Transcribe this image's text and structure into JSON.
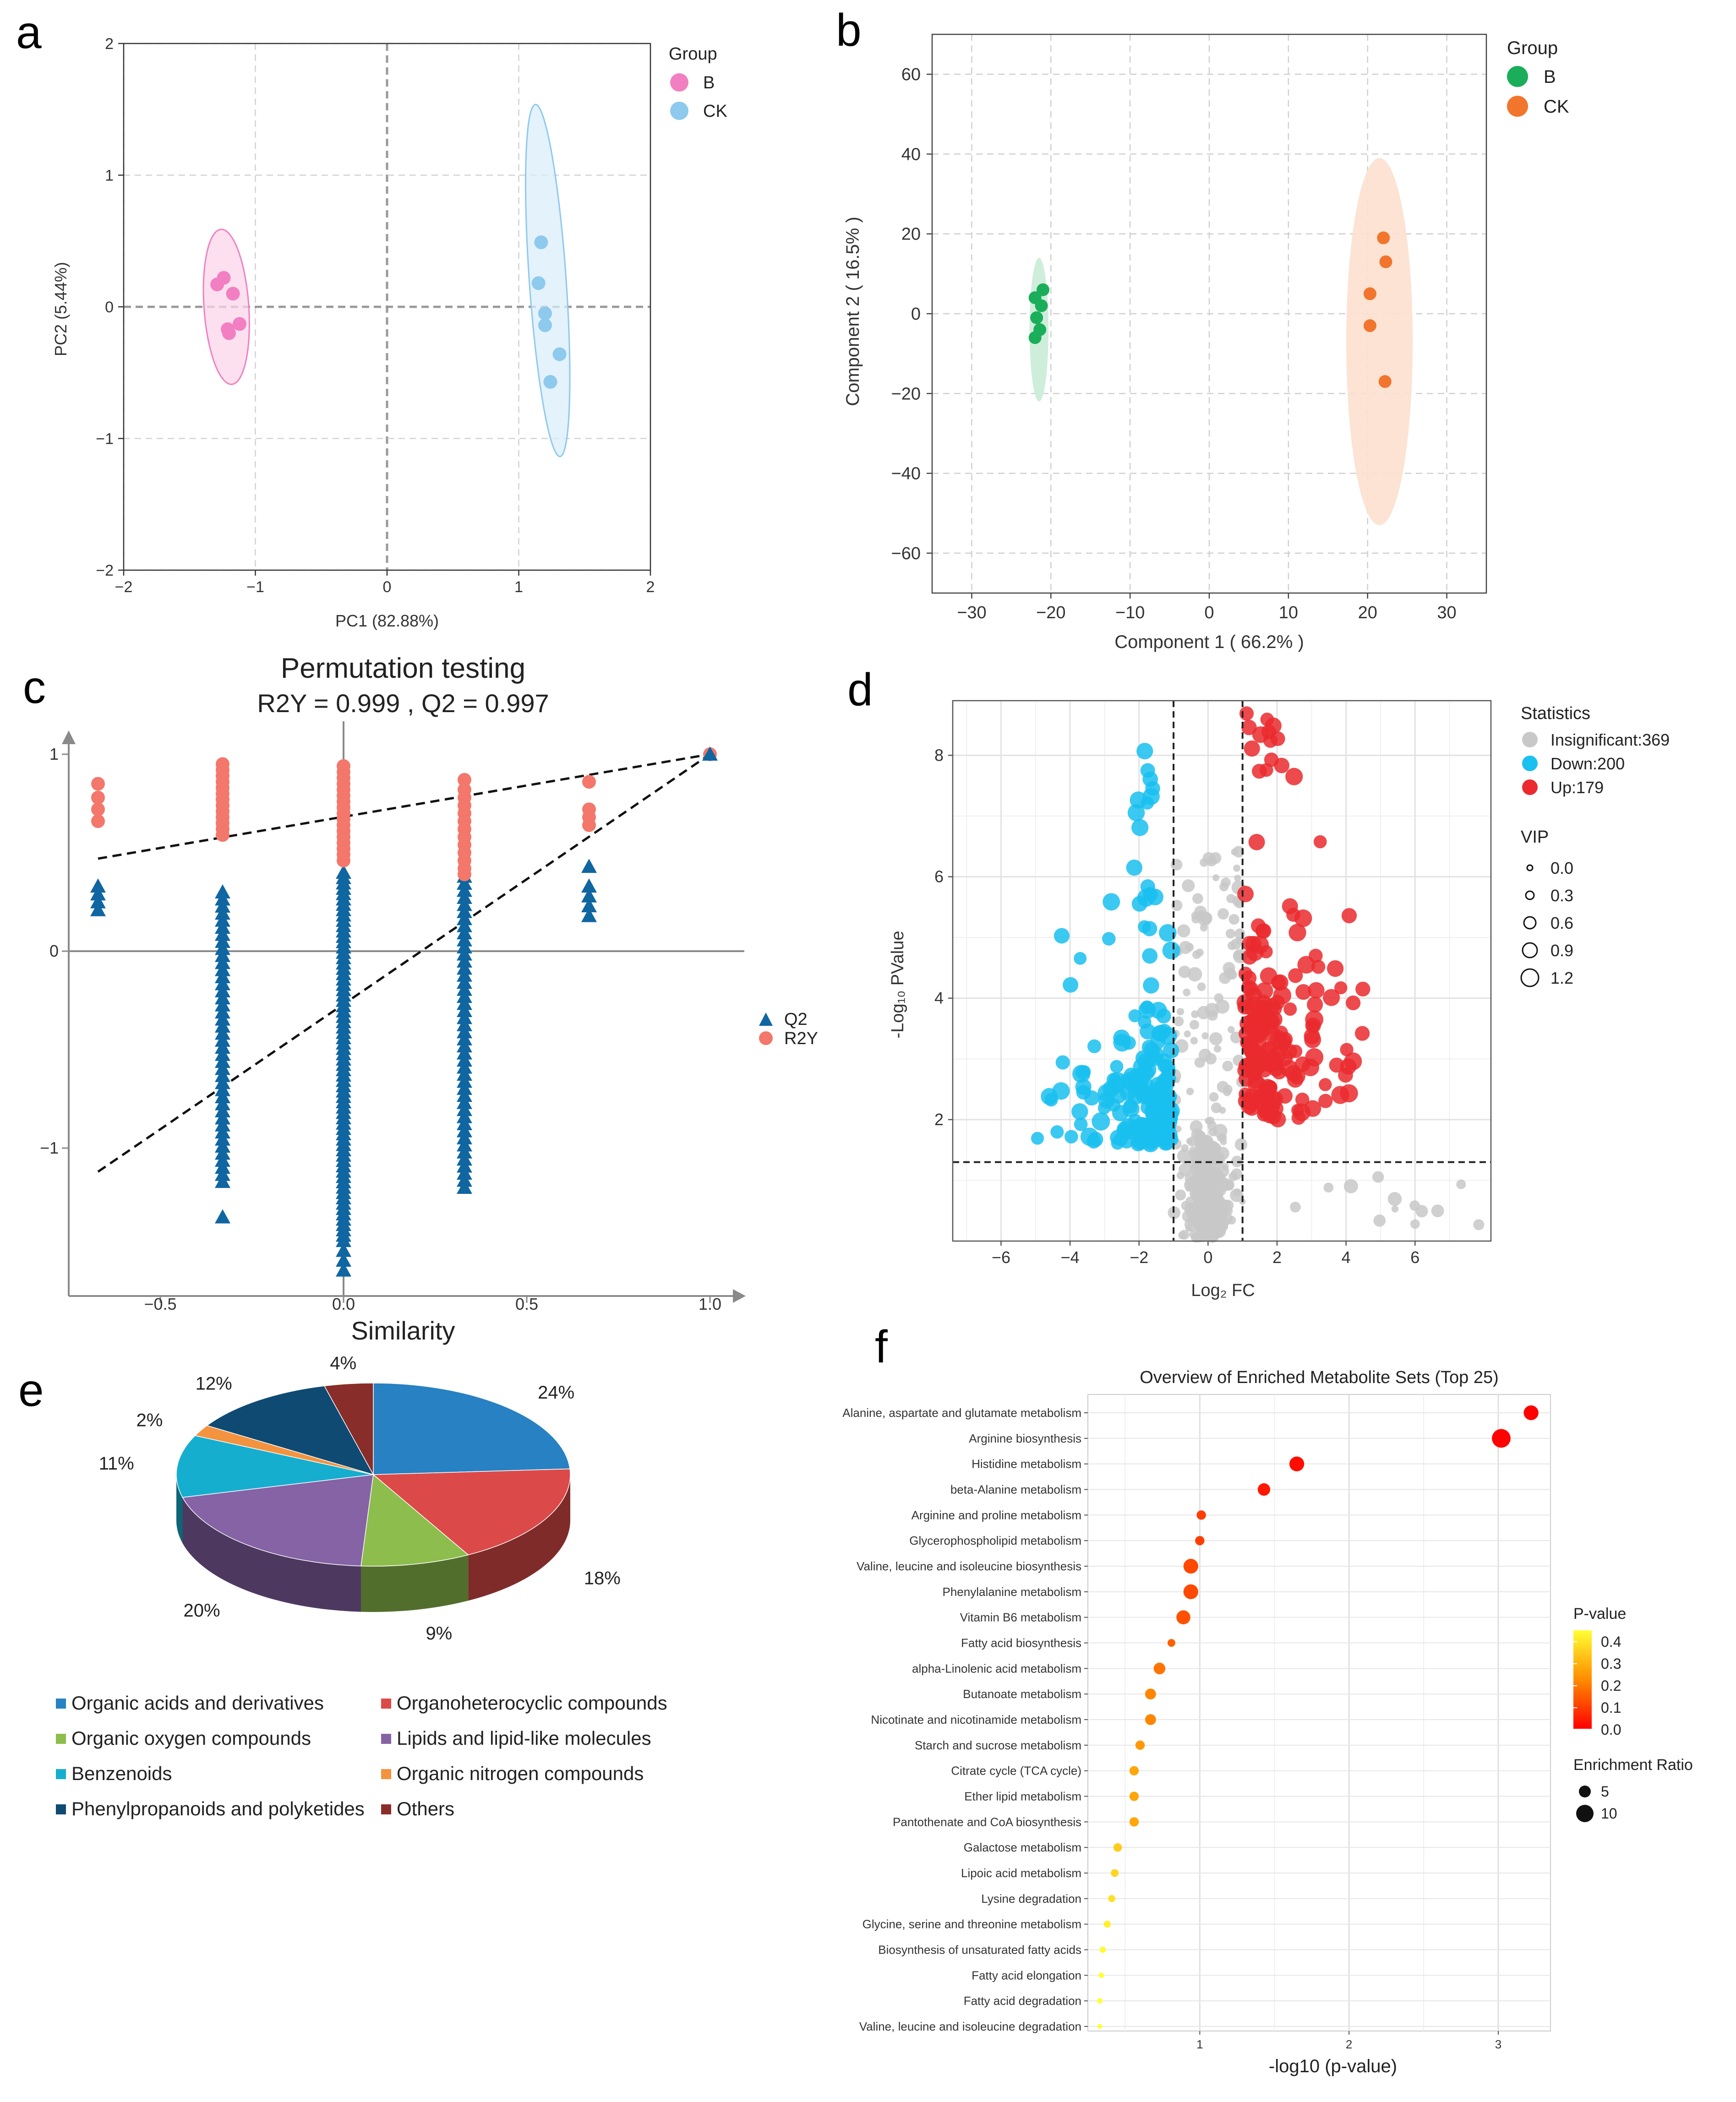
{
  "panels": {
    "a": {
      "letter": "a",
      "xlabel": "PC1 (82.88%)",
      "ylabel": "PC2 (5.44%)",
      "legend_title": "Group",
      "xticks": [
        -2,
        -1,
        0,
        1,
        2
      ],
      "yticks": [
        -2,
        -1,
        0,
        1,
        2
      ],
      "groups": [
        {
          "name": "B",
          "color": "#F27FC1",
          "fill": "#FBD6EA",
          "ellipse": {
            "cx": -1.22,
            "cy": 0.0,
            "rx": 0.17,
            "ry": 0.59,
            "rot": -4
          },
          "points": [
            [
              -1.29,
              0.17
            ],
            [
              -1.24,
              0.22
            ],
            [
              -1.17,
              0.1
            ],
            [
              -1.12,
              -0.13
            ],
            [
              -1.2,
              -0.2
            ],
            [
              -1.21,
              -0.17
            ]
          ]
        },
        {
          "name": "CK",
          "color": "#8EC9EE",
          "fill": "#D9EEFA",
          "ellipse": {
            "cx": 1.22,
            "cy": 0.2,
            "rx": 0.14,
            "ry": 1.34,
            "rot": -4
          },
          "points": [
            [
              1.17,
              0.49
            ],
            [
              1.15,
              0.18
            ],
            [
              1.2,
              -0.14
            ],
            [
              1.31,
              -0.36
            ],
            [
              1.24,
              -0.57
            ],
            [
              1.2,
              -0.05
            ]
          ]
        }
      ]
    },
    "b": {
      "letter": "b",
      "xlabel": "Component 1 ( 66.2% )",
      "ylabel": "Component 2 ( 16.5% )",
      "legend_title": "Group",
      "xticks": [
        -30,
        -20,
        -10,
        0,
        10,
        20,
        30
      ],
      "yticks": [
        -60,
        -40,
        -20,
        0,
        20,
        40,
        60
      ],
      "groups": [
        {
          "name": "B",
          "color": "#1AAE5A",
          "fill": "#C9ECD7",
          "ellipse": {
            "cx": -21.5,
            "cy": -4,
            "rx": 1.2,
            "ry": 18
          },
          "points": [
            [
              -21.0,
              6
            ],
            [
              -22.0,
              4
            ],
            [
              -21.2,
              2
            ],
            [
              -21.8,
              -1
            ],
            [
              -21.4,
              -4
            ],
            [
              -22.0,
              -6
            ]
          ]
        },
        {
          "name": "CK",
          "color": "#F2752D",
          "fill": "#FCE0CF",
          "ellipse": {
            "cx": 21.5,
            "cy": -7,
            "rx": 4.2,
            "ry": 46
          },
          "points": [
            [
              22.0,
              19
            ],
            [
              22.3,
              13
            ],
            [
              20.3,
              5
            ],
            [
              20.3,
              -3
            ],
            [
              22.2,
              -17
            ]
          ]
        }
      ]
    },
    "c": {
      "letter": "c",
      "title": "Permutation testing",
      "subtitle": "R2Y = 0.999 ,  Q2 = 0.997",
      "xlabel": "Similarity",
      "xticks": [
        "−0.5",
        "0.0",
        "0.5",
        "1.0"
      ],
      "yticks": [
        "1",
        "0",
        "−1"
      ],
      "legend": [
        {
          "name": "Q2",
          "color": "#0F66A1"
        },
        {
          "name": "R2Y",
          "color": "#F3776A"
        }
      ],
      "r2y_groups": [
        {
          "x": -0.67,
          "y": [
            0.85,
            0.78,
            0.72,
            0.66
          ]
        },
        {
          "x": -0.33,
          "y": [
            0.95,
            0.92,
            0.89,
            0.86,
            0.83,
            0.8,
            0.77,
            0.74,
            0.71,
            0.68,
            0.65,
            0.62,
            0.59
          ]
        },
        {
          "x": 0.0,
          "y": [
            0.94,
            0.91,
            0.88,
            0.85,
            0.82,
            0.79,
            0.76,
            0.73,
            0.7,
            0.67,
            0.64,
            0.61,
            0.58,
            0.55,
            0.52,
            0.49,
            0.46
          ]
        },
        {
          "x": 0.33,
          "y": [
            0.87,
            0.82,
            0.78,
            0.74,
            0.7,
            0.66,
            0.62,
            0.58,
            0.54,
            0.5,
            0.46,
            0.42,
            0.39
          ]
        },
        {
          "x": 0.67,
          "y": [
            0.86,
            0.72,
            0.68,
            0.64
          ]
        }
      ],
      "q2_groups": [
        {
          "x": -0.67,
          "y": [
            0.33,
            0.29,
            0.25,
            0.21
          ]
        },
        {
          "x": -0.33,
          "start": 0.3,
          "end": -1.17,
          "n": 42,
          "extra": [
            -1.35
          ]
        },
        {
          "x": 0.0,
          "start": 0.4,
          "end": -1.47,
          "n": 70,
          "extra": [
            -1.52,
            -1.57,
            -1.62
          ]
        },
        {
          "x": 0.33,
          "start": 0.38,
          "end": -1.2,
          "n": 45
        },
        {
          "x": 0.67,
          "y": [
            0.43,
            0.33,
            0.28,
            0.23,
            0.18
          ]
        }
      ],
      "r2y_line": [
        [
          -0.67,
          0.47
        ],
        [
          1.0,
          1.0
        ]
      ],
      "q2_line": [
        [
          -0.67,
          -1.12
        ],
        [
          1.0,
          1.0
        ]
      ],
      "final_point": [
        1.0,
        1.0
      ]
    },
    "d": {
      "letter": "d",
      "xlabel": "Log₂ FC",
      "ylabel": "-Log₁₀ PValue",
      "xticks": [
        -6,
        -4,
        -2,
        0,
        2,
        4,
        6
      ],
      "yticks": [
        2,
        4,
        6,
        8
      ],
      "legend_title_stats": "Statistics",
      "legend_stats": [
        {
          "label": "Insignificant:369",
          "color": "#C8C8C8"
        },
        {
          "label": "Down:200",
          "color": "#19C0F0"
        },
        {
          "label": "Up:179",
          "color": "#EA2A2E"
        }
      ],
      "legend_title_vip": "VIP",
      "legend_vip": [
        "0.0",
        "0.3",
        "0.6",
        "0.9",
        "1.2"
      ],
      "thresholds": {
        "fc": [
          -1,
          1
        ],
        "p": 1.3
      }
    },
    "e": {
      "letter": "e",
      "slices": [
        {
          "label": "Organic acids and derivatives",
          "pct": 24,
          "color": "#2781C2",
          "pct_label": "24%"
        },
        {
          "label": "Organoheterocyclic compounds",
          "pct": 18,
          "color": "#DB4A48",
          "pct_label": "18%"
        },
        {
          "label": "Organic oxygen compounds",
          "pct": 9,
          "color": "#8DBD4D",
          "pct_label": "9%"
        },
        {
          "label": "Lipids and lipid-like molecules",
          "pct": 20,
          "color": "#8563A5",
          "pct_label": "20%"
        },
        {
          "label": "Benzenoids",
          "pct": 11,
          "color": "#16AECF",
          "pct_label": "11%"
        },
        {
          "label": "Organic nitrogen compounds",
          "pct": 2,
          "color": "#F39340",
          "pct_label": "2%"
        },
        {
          "label": "Phenylpropanoids and polyketides",
          "pct": 12,
          "color": "#0F4A72",
          "pct_label": "12%"
        },
        {
          "label": "Others",
          "pct": 4,
          "color": "#892D2A",
          "pct_label": "4%"
        }
      ]
    },
    "f": {
      "letter": "f",
      "title": "Overview of Enriched Metabolite Sets (Top 25)",
      "xlabel": "-log10 (p-value)",
      "xticks": [
        1,
        2,
        3
      ],
      "legend_title_p": "P-value",
      "legend_p_ticks": [
        "0.4",
        "0.3",
        "0.2",
        "0.1",
        "0.0"
      ],
      "legend_title_er": "Enrichment Ratio",
      "legend_er": [
        "5",
        "10"
      ],
      "items": [
        {
          "name": "Alanine, aspartate and glutamate metabolism",
          "x": 3.22,
          "size": 9.5,
          "p": 0.001
        },
        {
          "name": "Arginine biosynthesis",
          "x": 3.02,
          "size": 12,
          "p": 0.001
        },
        {
          "name": "Histidine metabolism",
          "x": 1.65,
          "size": 9.5,
          "p": 0.022
        },
        {
          "name": "beta-Alanine metabolism",
          "x": 1.43,
          "size": 8,
          "p": 0.037
        },
        {
          "name": "Arginine and proline metabolism",
          "x": 1.01,
          "size": 6,
          "p": 0.098
        },
        {
          "name": "Glycerophospholipid metabolism",
          "x": 1.0,
          "size": 6,
          "p": 0.1
        },
        {
          "name": "Valine, leucine and isoleucine biosynthesis",
          "x": 0.94,
          "size": 9.5,
          "p": 0.115
        },
        {
          "name": "Phenylalanine metabolism",
          "x": 0.94,
          "size": 9.5,
          "p": 0.115
        },
        {
          "name": "Vitamin B6 metabolism",
          "x": 0.89,
          "size": 9,
          "p": 0.13
        },
        {
          "name": "Fatty acid biosynthesis",
          "x": 0.81,
          "size": 5,
          "p": 0.155
        },
        {
          "name": "alpha-Linolenic acid metabolism",
          "x": 0.73,
          "size": 7.5,
          "p": 0.186
        },
        {
          "name": "Butanoate metabolism",
          "x": 0.67,
          "size": 7,
          "p": 0.214
        },
        {
          "name": "Nicotinate and nicotinamide metabolism",
          "x": 0.67,
          "size": 7,
          "p": 0.214
        },
        {
          "name": "Starch and sucrose metabolism",
          "x": 0.6,
          "size": 6,
          "p": 0.25
        },
        {
          "name": "Citrate cycle (TCA cycle)",
          "x": 0.56,
          "size": 6,
          "p": 0.275
        },
        {
          "name": "Ether lipid metabolism",
          "x": 0.56,
          "size": 6,
          "p": 0.275
        },
        {
          "name": "Pantothenate and CoA biosynthesis",
          "x": 0.56,
          "size": 6,
          "p": 0.275
        },
        {
          "name": "Galactose metabolism",
          "x": 0.45,
          "size": 5.5,
          "p": 0.35
        },
        {
          "name": "Lipoic acid metabolism",
          "x": 0.43,
          "size": 5,
          "p": 0.37
        },
        {
          "name": "Lysine degradation",
          "x": 0.41,
          "size": 4.5,
          "p": 0.39
        },
        {
          "name": "Glycine, serine and threonine metabolism",
          "x": 0.38,
          "size": 4.5,
          "p": 0.42
        },
        {
          "name": "Biosynthesis of unsaturated fatty acids",
          "x": 0.35,
          "size": 4,
          "p": 0.44
        },
        {
          "name": "Fatty acid elongation",
          "x": 0.34,
          "size": 3.5,
          "p": 0.46
        },
        {
          "name": "Fatty acid degradation",
          "x": 0.33,
          "size": 3.5,
          "p": 0.47
        },
        {
          "name": "Valine, leucine and isoleucine degradation",
          "x": 0.33,
          "size": 3,
          "p": 0.47
        }
      ]
    }
  },
  "chart_data": [
    {
      "type": "scatter",
      "panel": "a",
      "title": "",
      "xlabel": "PC1 (82.88%)",
      "ylabel": "PC2 (5.44%)",
      "xlim": [
        -2,
        2
      ],
      "ylim": [
        -2,
        2
      ],
      "series": [
        {
          "name": "B",
          "x": [
            -1.29,
            -1.24,
            -1.17,
            -1.12,
            -1.2,
            -1.21
          ],
          "y": [
            0.17,
            0.22,
            0.1,
            -0.13,
            -0.2,
            -0.17
          ]
        },
        {
          "name": "CK",
          "x": [
            1.17,
            1.15,
            1.2,
            1.31,
            1.24,
            1.2
          ],
          "y": [
            0.49,
            0.18,
            -0.14,
            -0.36,
            -0.57,
            -0.05
          ]
        }
      ]
    },
    {
      "type": "scatter",
      "panel": "b",
      "title": "",
      "xlabel": "Component 1 ( 66.2% )",
      "ylabel": "Component 2 ( 16.5% )",
      "xlim": [
        -35,
        35
      ],
      "ylim": [
        -70,
        70
      ],
      "series": [
        {
          "name": "B",
          "x": [
            -21.0,
            -22.0,
            -21.2,
            -21.8,
            -21.4,
            -22.0
          ],
          "y": [
            6,
            4,
            2,
            -1,
            -4,
            -6
          ]
        },
        {
          "name": "CK",
          "x": [
            22.0,
            22.3,
            20.3,
            20.3,
            22.2
          ],
          "y": [
            19,
            13,
            5,
            -3,
            -17
          ]
        }
      ]
    },
    {
      "type": "scatter",
      "panel": "c",
      "title": "Permutation testing",
      "subtitle": "R2Y = 0.999 ,  Q2 = 0.997",
      "xlabel": "Similarity",
      "ylabel": "",
      "xlim": [
        -0.75,
        1.1
      ],
      "ylim": [
        -1.75,
        1.1
      ],
      "series": [
        {
          "name": "Q2",
          "x": [
            -0.67,
            -0.33,
            0.0,
            0.33,
            0.67,
            1.0
          ]
        },
        {
          "name": "R2Y",
          "x": [
            -0.67,
            -0.33,
            0.0,
            0.33,
            0.67,
            1.0
          ]
        }
      ]
    },
    {
      "type": "scatter",
      "panel": "d",
      "title": "",
      "xlabel": "Log₂ FC",
      "ylabel": "-Log₁₀ PValue",
      "xlim": [
        -7.4,
        8.2
      ],
      "ylim": [
        0,
        8.9
      ],
      "series": [
        {
          "name": "Insignificant",
          "count": 369
        },
        {
          "name": "Down",
          "count": 200
        },
        {
          "name": "Up",
          "count": 179
        }
      ]
    },
    {
      "type": "pie",
      "panel": "e",
      "categories": [
        "Organic acids and derivatives",
        "Organoheterocyclic compounds",
        "Organic oxygen compounds",
        "Lipids and lipid-like molecules",
        "Benzenoids",
        "Organic nitrogen compounds",
        "Phenylpropanoids and polyketides",
        "Others"
      ],
      "values": [
        24,
        18,
        9,
        20,
        11,
        2,
        12,
        4
      ]
    },
    {
      "type": "scatter",
      "panel": "f",
      "title": "Overview of Enriched Metabolite Sets (Top 25)",
      "xlabel": "-log10 (p-value)",
      "ylabel": "",
      "xlim": [
        0.25,
        3.35
      ]
    }
  ]
}
